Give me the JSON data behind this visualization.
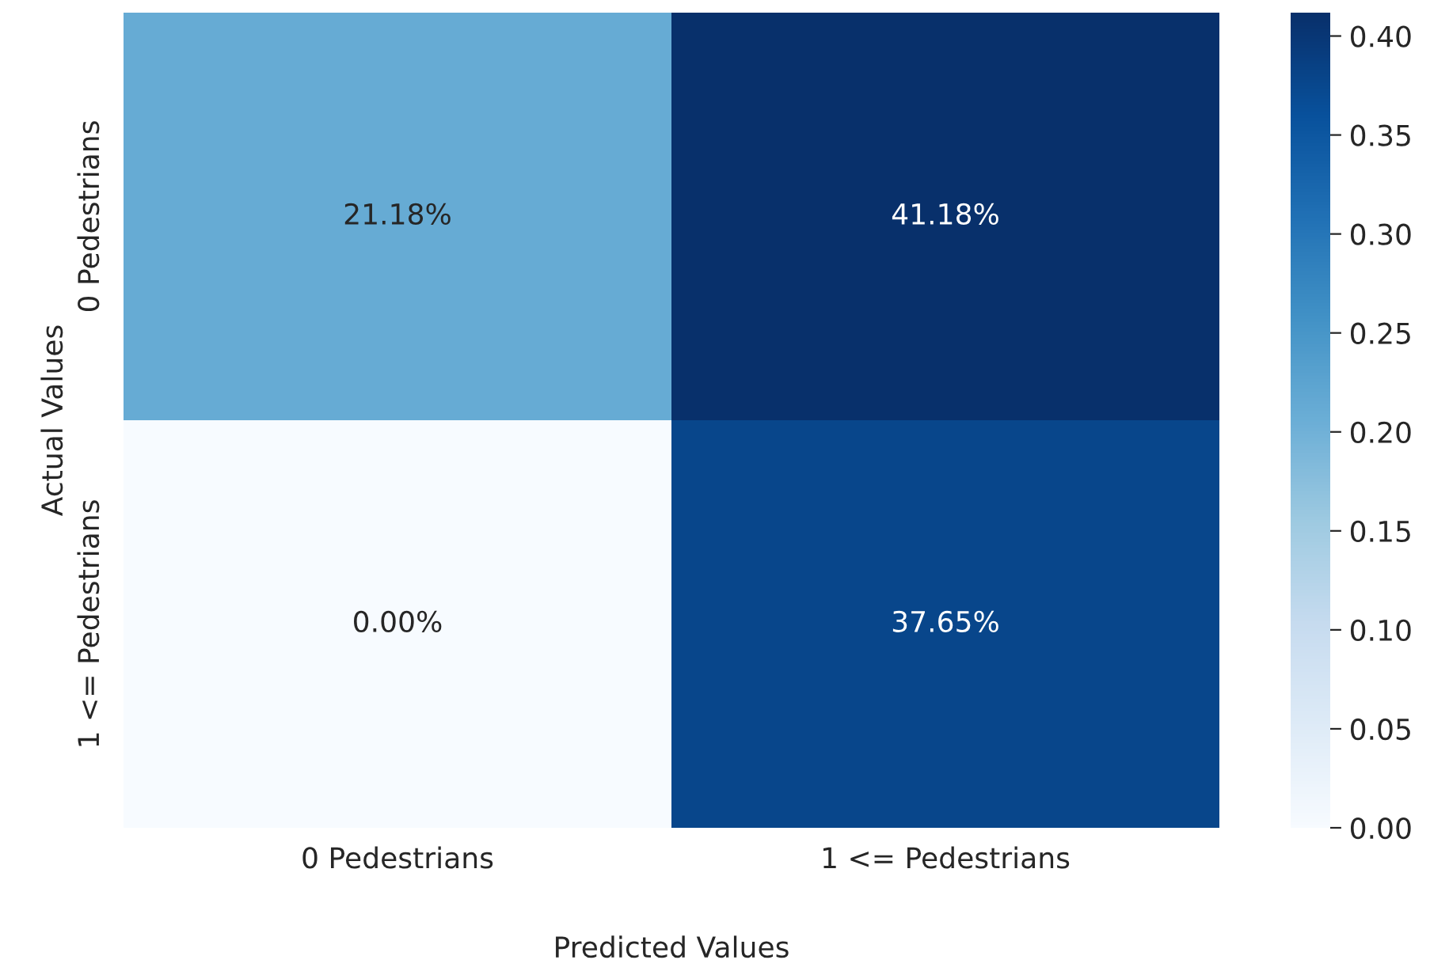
{
  "chart_data": {
    "type": "heatmap",
    "xlabel": "Predicted Values",
    "ylabel": "Actual Values",
    "categories": [
      "0 Pedestrians",
      "1 <= Pedestrians"
    ],
    "y_categories": [
      "0 Pedestrians",
      "1 <= Pedestrians"
    ],
    "cells": [
      [
        0.2118,
        0.4118
      ],
      [
        0.0,
        0.3765
      ]
    ],
    "cell_labels": [
      [
        "21.18%",
        "41.18%"
      ],
      [
        "0.00%",
        "37.65%"
      ]
    ],
    "clim": [
      0,
      0.4118
    ],
    "cticks": [
      {
        "value": 0,
        "label": "0.00"
      },
      {
        "value": 0.05,
        "label": "0.05"
      },
      {
        "value": 0.1,
        "label": "0.10"
      },
      {
        "value": 0.15,
        "label": "0.15"
      },
      {
        "value": 0.2,
        "label": "0.20"
      },
      {
        "value": 0.25,
        "label": "0.25"
      },
      {
        "value": 0.3,
        "label": "0.30"
      },
      {
        "value": 0.35,
        "label": "0.35"
      },
      {
        "value": 0.4,
        "label": "0.40"
      }
    ]
  }
}
